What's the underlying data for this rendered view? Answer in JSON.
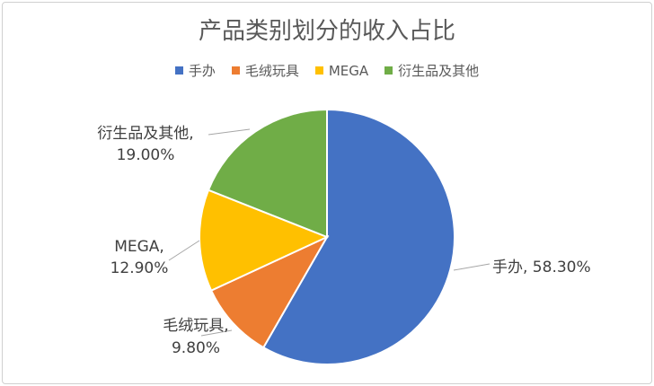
{
  "chart_data": {
    "type": "pie",
    "title": "产品类别划分的收入占比",
    "legend_position": "top",
    "slices": [
      {
        "name": "手办",
        "value": 58.3,
        "label": "58.30%",
        "color": "#4472C4"
      },
      {
        "name": "毛绒玩具",
        "value": 9.8,
        "label": "9.80%",
        "color": "#ED7D31"
      },
      {
        "name": "MEGA",
        "value": 12.9,
        "label": "12.90%",
        "color": "#FFC000"
      },
      {
        "name": "衍生品及其他",
        "value": 19.0,
        "label": "19.00%",
        "color": "#70AD47"
      }
    ]
  }
}
